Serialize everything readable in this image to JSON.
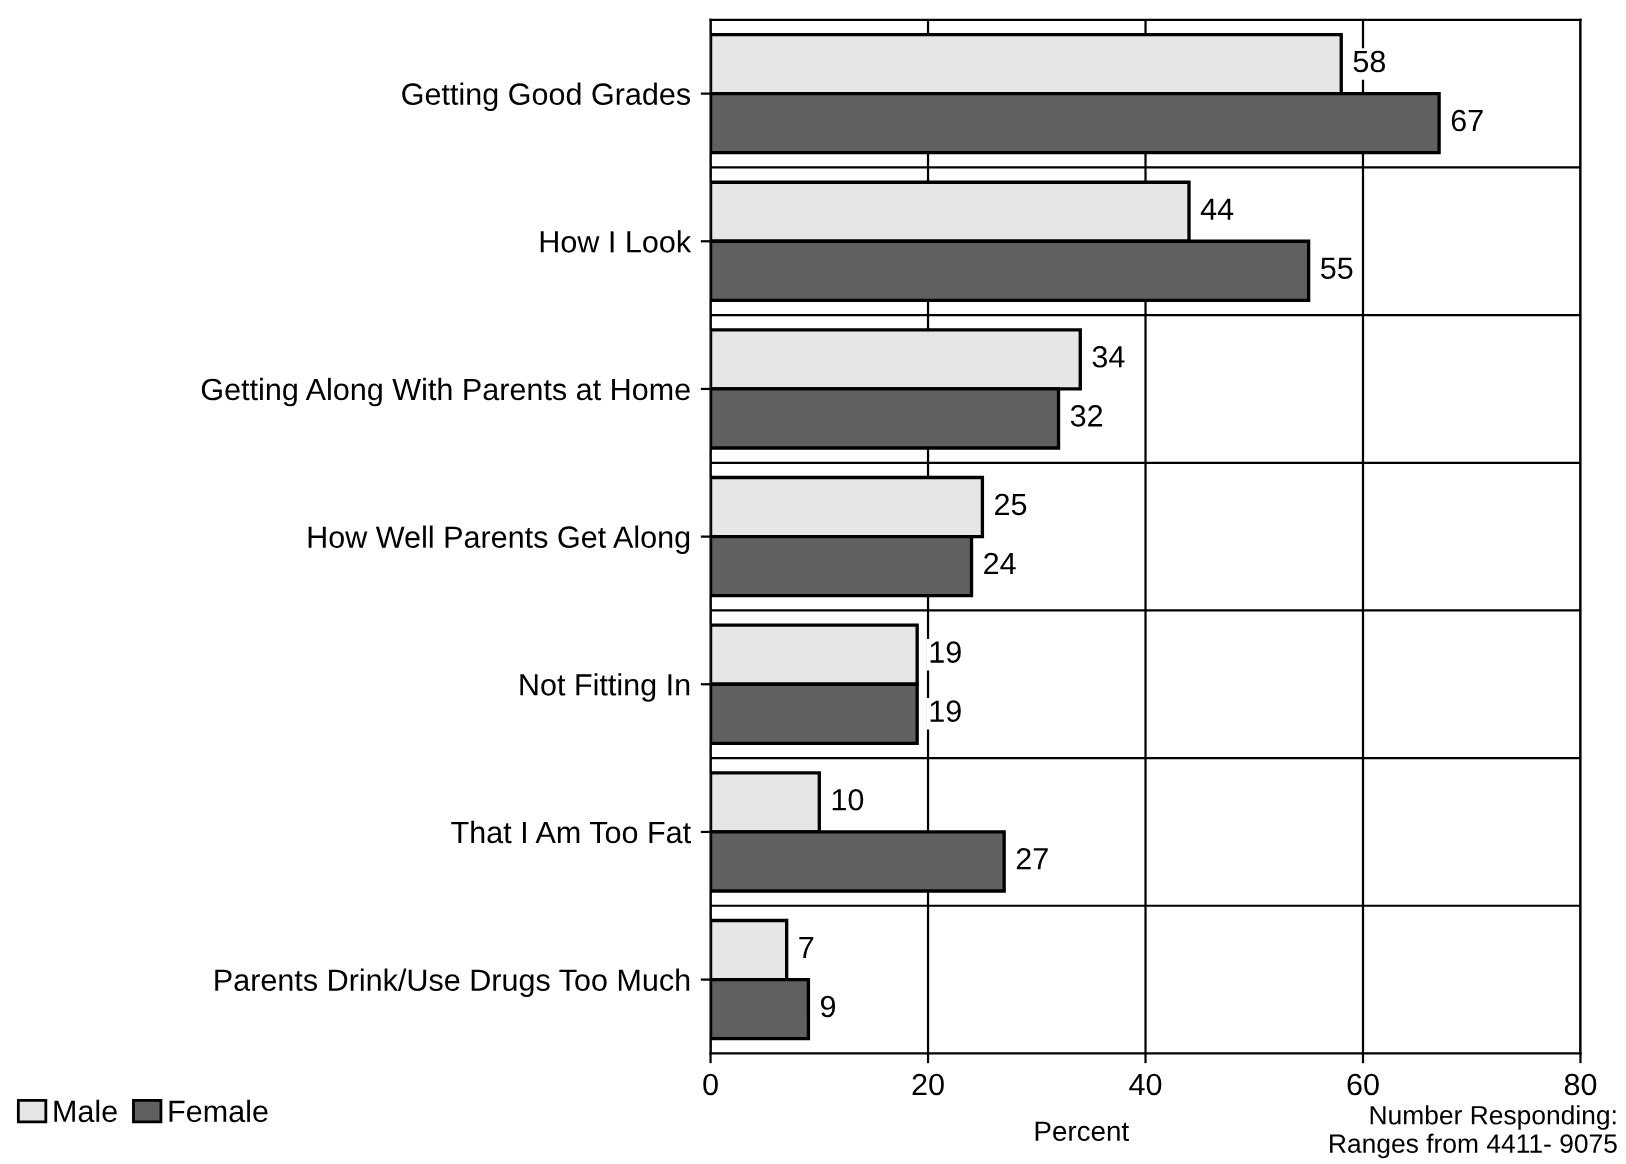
{
  "chart_data": {
    "type": "bar",
    "orientation": "horizontal",
    "categories": [
      "Getting Good Grades",
      "How I Look",
      "Getting Along With Parents at Home",
      "How Well Parents Get Along",
      "Not Fitting In",
      "That I Am Too Fat",
      "Parents Drink/Use Drugs Too Much"
    ],
    "series": [
      {
        "name": "Male",
        "color": "#e6e6e6",
        "values": [
          58,
          44,
          34,
          25,
          19,
          10,
          7
        ]
      },
      {
        "name": "Female",
        "color": "#606060",
        "values": [
          67,
          55,
          32,
          24,
          19,
          27,
          9
        ]
      }
    ],
    "xlim": [
      0,
      80
    ],
    "xticks": [
      0,
      20,
      40,
      60,
      80
    ],
    "xlabel": "Percent",
    "grid": true,
    "legend": "bottom left",
    "data_labels": true,
    "annotations": [
      "Number Responding:\nRanges from 4411- 9075"
    ]
  }
}
